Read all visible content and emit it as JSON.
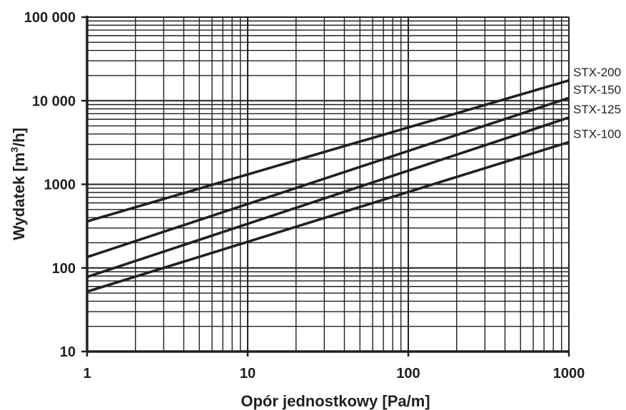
{
  "chart_data": {
    "type": "line",
    "x_scale": "log",
    "y_scale": "log",
    "xlim": [
      1,
      1000
    ],
    "ylim": [
      10,
      100000
    ],
    "grid": true,
    "xlabel": "Opór jednostkowy  [Pa/m]",
    "ylabel_parts": [
      "Wydatek  [m",
      "3",
      "/h]"
    ],
    "x_ticks": [
      {
        "value": 1,
        "label": "1"
      },
      {
        "value": 10,
        "label": "10"
      },
      {
        "value": 100,
        "label": "100"
      },
      {
        "value": 1000,
        "label": "1000"
      }
    ],
    "y_ticks": [
      {
        "value": 10,
        "label": "10"
      },
      {
        "value": 100,
        "label": "100"
      },
      {
        "value": 1000,
        "label": "1000"
      },
      {
        "value": 10000,
        "label": "10 000"
      },
      {
        "value": 100000,
        "label": "100 000"
      }
    ],
    "series": [
      {
        "name": "STX-200",
        "x": [
          1,
          1000
        ],
        "y": [
          360,
          17500
        ]
      },
      {
        "name": "STX-150",
        "x": [
          1,
          1000
        ],
        "y": [
          135,
          10800
        ]
      },
      {
        "name": "STX-125",
        "x": [
          1,
          1000
        ],
        "y": [
          78,
          6300
        ]
      },
      {
        "name": "STX-100",
        "x": [
          1,
          1000
        ],
        "y": [
          52,
          3200
        ]
      }
    ],
    "line_color": "#231f20"
  }
}
